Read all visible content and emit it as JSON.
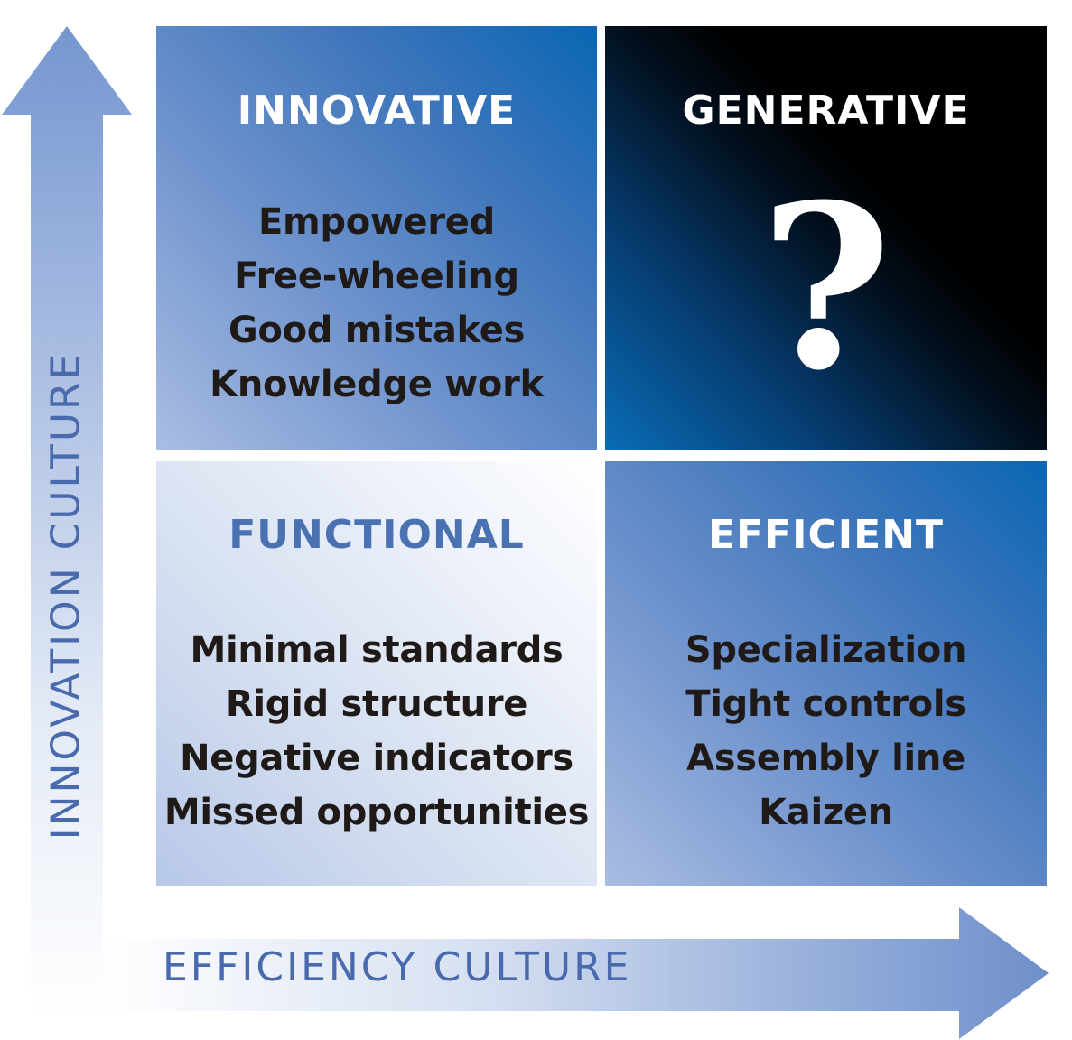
{
  "quadrants": {
    "top_left": {
      "title": "INNOVATIVE",
      "items": [
        "Empowered",
        "Free-wheeling",
        "Good mistakes",
        "Knowledge work"
      ]
    },
    "top_right": {
      "title": "GENERATIVE",
      "symbol": "?"
    },
    "bottom_left": {
      "title": "FUNCTIONAL",
      "items": [
        "Minimal standards",
        "Rigid structure",
        "Negative indicators",
        "Missed opportunities"
      ]
    },
    "bottom_right": {
      "title": "EFFICIENT",
      "items": [
        "Specialization",
        "Tight controls",
        "Assembly line",
        "Kaizen"
      ]
    }
  },
  "axes": {
    "x_label": "EFFICIENCY CULTURE",
    "y_label": "INNOVATION CULTURE"
  },
  "colors": {
    "axis_blue": "#6f8fcb",
    "axis_text": "#4a6aae",
    "functional_title": "#4a72b3",
    "body_text": "#1f1a17"
  }
}
